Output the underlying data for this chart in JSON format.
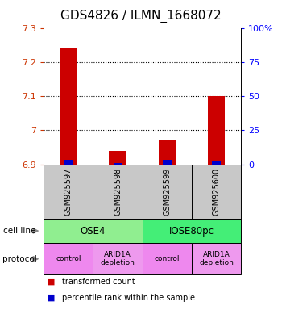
{
  "title": "GDS4826 / ILMN_1668072",
  "samples": [
    "GSM925597",
    "GSM925598",
    "GSM925599",
    "GSM925600"
  ],
  "transformed_counts": [
    7.24,
    6.94,
    6.97,
    7.1
  ],
  "percentile_ranks": [
    3.5,
    1.0,
    3.5,
    2.5
  ],
  "ylim_left": [
    6.9,
    7.3
  ],
  "ylim_right": [
    0,
    100
  ],
  "yticks_left": [
    6.9,
    7.0,
    7.1,
    7.2,
    7.3
  ],
  "yticks_right": [
    0,
    25,
    50,
    75,
    100
  ],
  "ytick_labels_left": [
    "6.9",
    "7",
    "7.1",
    "7.2",
    "7.3"
  ],
  "ytick_labels_right": [
    "0",
    "25",
    "50",
    "75",
    "100%"
  ],
  "cell_line_colors": [
    "#90EE90",
    "#44EE77"
  ],
  "cell_line_labels": [
    "OSE4",
    "IOSE80pc"
  ],
  "protocol_colors": [
    "#EE88EE",
    "#EE99EE",
    "#EE88EE",
    "#EE99EE"
  ],
  "protocol_labels": [
    "control",
    "ARID1A\ndepletion",
    "control",
    "ARID1A\ndepletion"
  ],
  "bar_color_red": "#CC0000",
  "bar_color_blue": "#0000CC",
  "bar_width": 0.35,
  "blue_bar_width": 0.18,
  "dotted_yticks": [
    7.0,
    7.1,
    7.2
  ],
  "cell_line_label": "cell line",
  "protocol_label": "protocol",
  "legend_red_label": "transformed count",
  "legend_blue_label": "percentile rank within the sample",
  "gsm_box_color": "#C8C8C8",
  "title_fontsize": 11,
  "tick_fontsize": 8,
  "label_fontsize": 8
}
